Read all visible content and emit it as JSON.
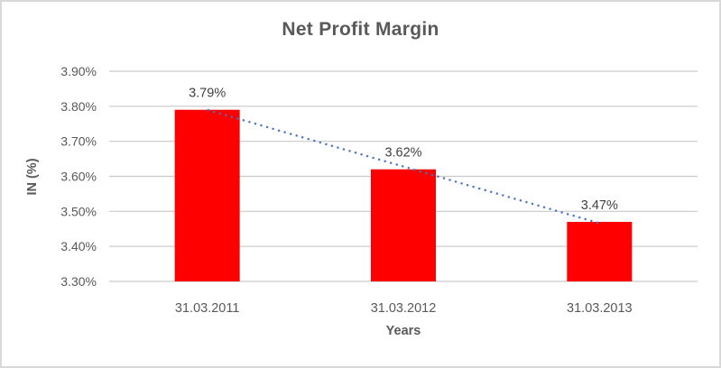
{
  "window": {
    "background": "#ffffff",
    "border_color": "#d8d8d8"
  },
  "chart_data": {
    "type": "bar",
    "title": "Net Profit Margin",
    "xlabel": "Years",
    "ylabel": "IN (%)",
    "categories": [
      "31.03.2011",
      "31.03.2012",
      "31.03.2013"
    ],
    "series": [
      {
        "name": "Net Profit Margin",
        "color": "#ff0000",
        "values": [
          3.79,
          3.62,
          3.47
        ]
      }
    ],
    "data_labels": [
      "3.79%",
      "3.62%",
      "3.47%"
    ],
    "y_ticks": [
      {
        "value": 3.9,
        "label": "3.90%"
      },
      {
        "value": 3.8,
        "label": "3.80%"
      },
      {
        "value": 3.7,
        "label": "3.70%"
      },
      {
        "value": 3.6,
        "label": "3.60%"
      },
      {
        "value": 3.5,
        "label": "3.50%"
      },
      {
        "value": 3.4,
        "label": "3.40%"
      },
      {
        "value": 3.3,
        "label": "3.30%"
      }
    ],
    "ylim": [
      3.3,
      3.9
    ],
    "grid": true,
    "legend": "none",
    "trendline": {
      "type": "linear",
      "style": "dotted",
      "color": "#4472c4",
      "start_value": 3.79,
      "end_value": 3.466
    },
    "colors": {
      "bar": "#ff0000",
      "gridline": "#c9c9c9",
      "title_text": "#595959",
      "axis_title_text": "#595959",
      "tick_label_text": "#595959",
      "data_label_text": "#404040"
    }
  }
}
